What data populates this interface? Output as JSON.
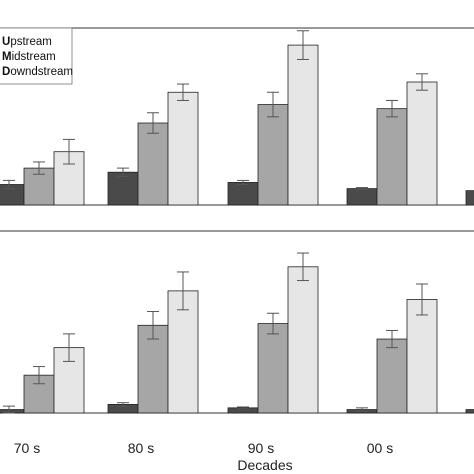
{
  "chart_data": {
    "type": "bar",
    "xlabel": "Decades",
    "categories": [
      "70 s",
      "80 s",
      "90 s",
      "00 s",
      ""
    ],
    "colors": {
      "Upstream": "#4a4a4a",
      "Midstream": "#a6a6a6",
      "Downstream": "#e6e6e6",
      "stroke": "#222222",
      "error_bar": "#555555"
    },
    "legend": {
      "location": "top-left",
      "entries": [
        {
          "initial": "U",
          "rest": "pstream"
        },
        {
          "initial": "M",
          "rest": "idstream"
        },
        {
          "initial": "D",
          "rest": "owndstream"
        }
      ]
    },
    "panels": [
      {
        "position": "top",
        "ylim": [
          0,
          100
        ],
        "series": [
          {
            "name": "Upstream",
            "values": [
              10,
              16,
              11,
              8,
              7
            ],
            "errors": [
              2,
              2,
              1,
              0.5,
              0
            ]
          },
          {
            "name": "Midstream",
            "values": [
              18,
              40,
              49,
              47,
              null
            ],
            "errors": [
              3,
              5,
              6,
              4,
              0
            ]
          },
          {
            "name": "Downstream",
            "values": [
              26,
              55,
              78,
              60,
              null
            ],
            "errors": [
              6,
              4,
              7,
              4,
              0
            ]
          }
        ]
      },
      {
        "position": "bottom",
        "ylim": [
          0,
          100
        ],
        "series": [
          {
            "name": "Upstream",
            "values": [
              2,
              5,
              3,
              2,
              2
            ],
            "errors": [
              2,
              1,
              0.5,
              1,
              0
            ]
          },
          {
            "name": "Midstream",
            "values": [
              22,
              51,
              52,
              43,
              null
            ],
            "errors": [
              5,
              8,
              6,
              5,
              0
            ]
          },
          {
            "name": "Downstream",
            "values": [
              38,
              71,
              85,
              66,
              null
            ],
            "errors": [
              8,
              11,
              8,
              9,
              0
            ]
          }
        ]
      }
    ]
  }
}
